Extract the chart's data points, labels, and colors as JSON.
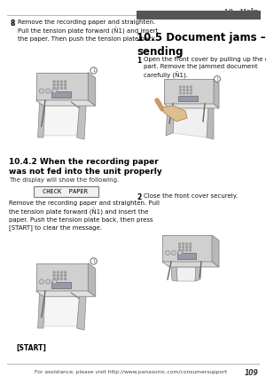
{
  "page_bg": "#ffffff",
  "header_text": "10.  Help",
  "footer_text": "For assistance, please visit http://www.panasonic.com/consumersupport",
  "footer_page": "109",
  "left_col": {
    "step8_bullet": "8",
    "step8_text": "Remove the recording paper and straighten.\nPull the tension plate forward (Ñ1) and insert\nthe paper. Then push the tension plate back.",
    "section_title": "10.4.2 When the recording paper\nwas not fed into the unit properly",
    "section_subtitle": "The display will show the following.",
    "display_box_text": "CHECK  PAPER",
    "body_text": "Remove the recording paper and straighten. Pull\nthe tension plate forward (Ñ1) and insert the\npaper. Push the tension plate back, then press\n[START] to clear the message.",
    "start_label": "[START]"
  },
  "right_col": {
    "section_title": "10.5 Document jams –\nsending",
    "step1_bullet": "1",
    "step1_text": "Open the front cover by pulling up the center\npart. Remove the jammed document\ncarefully (Ñ1).",
    "step2_bullet": "2",
    "step2_text": "Close the front cover securely."
  }
}
